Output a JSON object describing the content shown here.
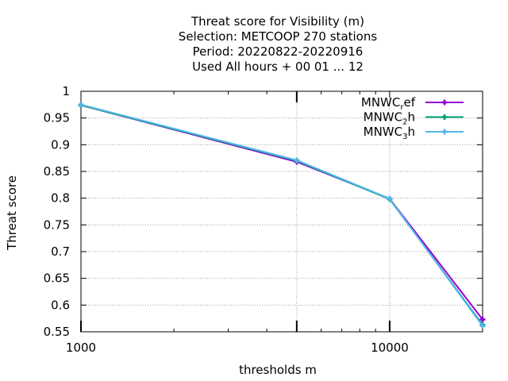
{
  "chart_data": {
    "type": "line",
    "title_lines": [
      "Threat score  for Visibility (m)",
      "Selection: METCOOP    270 stations",
      "Period: 20220822-20220916",
      "Used  All hours + 00 01 ... 12"
    ],
    "xlabel": "thresholds m",
    "ylabel": "Threat score",
    "x_scale": "log",
    "xlim": [
      1000,
      20000
    ],
    "ylim": [
      0.55,
      1.0
    ],
    "x_ticks": [
      1000,
      10000
    ],
    "x_tick_labels": [
      "1000",
      "10000"
    ],
    "y_ticks": [
      0.55,
      0.6,
      0.65,
      0.7,
      0.75,
      0.8,
      0.85,
      0.9,
      0.95,
      1.0
    ],
    "y_tick_labels": [
      "0.55",
      "0.6",
      "0.65",
      "0.7",
      "0.75",
      "0.8",
      "0.85",
      "0.9",
      "0.95",
      "1"
    ],
    "grid": true,
    "legend_position": "top-right",
    "series": [
      {
        "name": "MNWC_ref",
        "label_main": "MNWC",
        "label_sub": "r",
        "label_tail": "ef",
        "color": "#9400d3",
        "x": [
          1000,
          5000,
          10000,
          20000
        ],
        "y": [
          0.974,
          0.868,
          0.799,
          0.573
        ]
      },
      {
        "name": "MNWC_2h",
        "label_main": "MNWC",
        "label_sub": "2",
        "label_tail": "h",
        "color": "#009e73",
        "x": [
          1000,
          5000,
          10000,
          20000
        ],
        "y": [
          0.974,
          0.87,
          0.798,
          0.563
        ]
      },
      {
        "name": "MNWC_3h",
        "label_main": "MNWC",
        "label_sub": "3",
        "label_tail": "h",
        "color": "#56b4e9",
        "x": [
          1000,
          5000,
          10000,
          20000
        ],
        "y": [
          0.975,
          0.871,
          0.799,
          0.561
        ]
      }
    ]
  }
}
